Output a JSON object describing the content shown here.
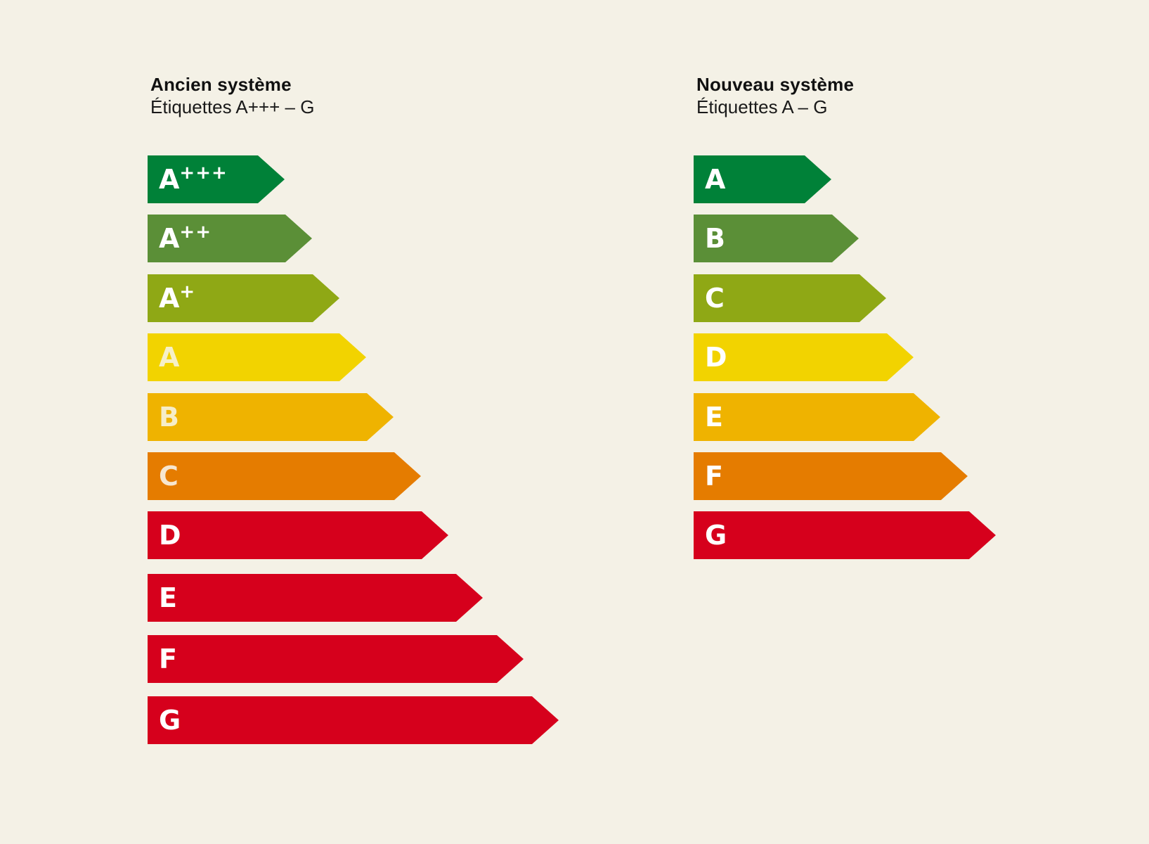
{
  "panels": {
    "old": {
      "title": "Ancien système",
      "subtitle": "Étiquettes A+++ – G",
      "bars": [
        {
          "letter": "A",
          "sup": "+++",
          "color": "#008138",
          "text_color": "#ffffff"
        },
        {
          "letter": "A",
          "sup": "++",
          "color": "#5b8f37",
          "text_color": "#ffffff"
        },
        {
          "letter": "A",
          "sup": "+",
          "color": "#8fa815",
          "text_color": "#ffffff"
        },
        {
          "letter": "A",
          "sup": "",
          "color": "#f2d300",
          "text_color": "#f6f0c8"
        },
        {
          "letter": "B",
          "sup": "",
          "color": "#efb300",
          "text_color": "#f6edc8"
        },
        {
          "letter": "C",
          "sup": "",
          "color": "#e57c00",
          "text_color": "#f7e6cf"
        },
        {
          "letter": "D",
          "sup": "",
          "color": "#d6001c",
          "text_color": "#ffffff"
        },
        {
          "letter": "E",
          "sup": "",
          "color": "#d6001c",
          "text_color": "#ffffff"
        },
        {
          "letter": "F",
          "sup": "",
          "color": "#d6001c",
          "text_color": "#ffffff"
        },
        {
          "letter": "G",
          "sup": "",
          "color": "#d6001c",
          "text_color": "#ffffff"
        }
      ]
    },
    "new": {
      "title": "Nouveau système",
      "subtitle": "Étiquettes A – G",
      "bars": [
        {
          "letter": "A",
          "sup": "",
          "color": "#008138",
          "text_color": "#ffffff"
        },
        {
          "letter": "B",
          "sup": "",
          "color": "#5b8f37",
          "text_color": "#ffffff"
        },
        {
          "letter": "C",
          "sup": "",
          "color": "#8fa815",
          "text_color": "#ffffff"
        },
        {
          "letter": "D",
          "sup": "",
          "color": "#f2d300",
          "text_color": "#ffffff"
        },
        {
          "letter": "E",
          "sup": "",
          "color": "#efb300",
          "text_color": "#ffffff"
        },
        {
          "letter": "F",
          "sup": "",
          "color": "#e57c00",
          "text_color": "#ffffff"
        },
        {
          "letter": "G",
          "sup": "",
          "color": "#d6001c",
          "text_color": "#ffffff"
        }
      ]
    }
  }
}
